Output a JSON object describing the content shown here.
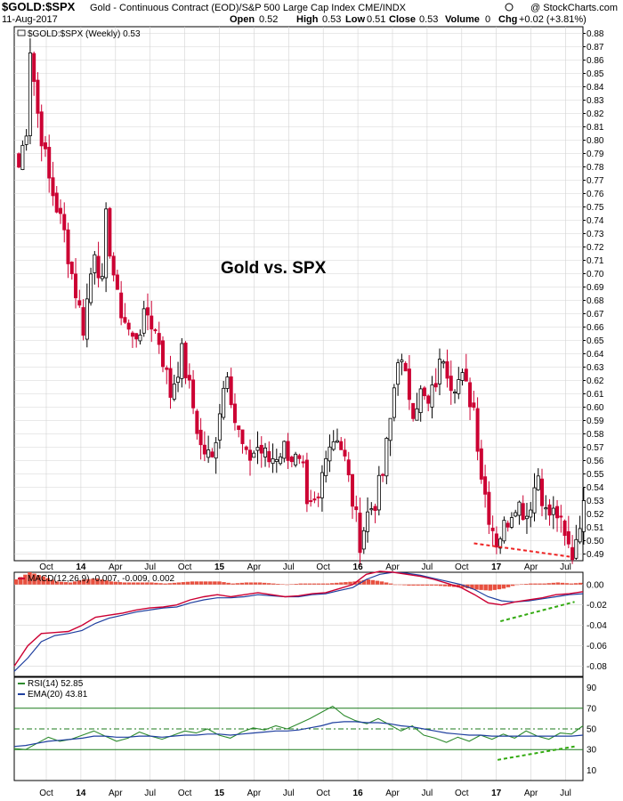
{
  "header": {
    "symbol": "$GOLD:$SPX",
    "description": "Gold - Continuous Contract (EOD)/S&P 500 Large Cap Index  CME/INDX",
    "watermark": "@ StockCharts.com",
    "date": "11-Aug-2017",
    "open_label": "Open",
    "open": "0.52",
    "high_label": "High",
    "high": "0.53",
    "low_label": "Low",
    "low": "0.51",
    "close_label": "Close",
    "close": "0.53",
    "volume_label": "Volume",
    "volume": "0",
    "chg_label": "Chg",
    "chg": "+0.02 (+3.81%)"
  },
  "colors": {
    "up": "#000000",
    "down": "#cc0033",
    "macd_line": "#cc0033",
    "signal_line": "#1f3f9f",
    "histogram": "#e8503f",
    "rsi_line": "#2e8b2e",
    "ema_line": "#1f3f9f",
    "grid": "#d3d3d3",
    "support_up": "#33aa11",
    "support_down": "#ee2222",
    "level_line": "#1a7a1a"
  },
  "chart_data": [
    {
      "type": "candlestick",
      "title": "$GOLD:$SPX (Weekly) 0.53",
      "annotation": "Gold vs. SPX",
      "x_ticks": [
        "Oct",
        "14",
        "Apr",
        "Jul",
        "Oct",
        "15",
        "Apr",
        "Jul",
        "Oct",
        "16",
        "Apr",
        "Jul",
        "Oct",
        "17",
        "Apr",
        "Jul"
      ],
      "y_ticks": [
        "0.88",
        "0.87",
        "0.86",
        "0.85",
        "0.84",
        "0.83",
        "0.82",
        "0.81",
        "0.80",
        "0.79",
        "0.78",
        "0.77",
        "0.76",
        "0.75",
        "0.74",
        "0.73",
        "0.72",
        "0.71",
        "0.70",
        "0.69",
        "0.68",
        "0.67",
        "0.66",
        "0.65",
        "0.64",
        "0.63",
        "0.62",
        "0.61",
        "0.60",
        "0.59",
        "0.58",
        "0.57",
        "0.56",
        "0.55",
        "0.54",
        "0.53",
        "0.52",
        "0.51",
        "0.50",
        "0.49"
      ],
      "ylim": [
        0.485,
        0.885
      ],
      "x_range": [
        "2013-08",
        "2017-08"
      ],
      "close_anchors": [
        [
          0,
          0.78
        ],
        [
          2,
          0.81
        ],
        [
          3,
          0.87
        ],
        [
          5,
          0.82
        ],
        [
          8,
          0.77
        ],
        [
          12,
          0.73
        ],
        [
          14,
          0.7
        ],
        [
          17,
          0.66
        ],
        [
          20,
          0.72
        ],
        [
          22,
          0.69
        ],
        [
          23,
          0.74
        ],
        [
          26,
          0.68
        ],
        [
          30,
          0.65
        ],
        [
          34,
          0.67
        ],
        [
          37,
          0.65
        ],
        [
          40,
          0.61
        ],
        [
          43,
          0.64
        ],
        [
          46,
          0.6
        ],
        [
          48,
          0.57
        ],
        [
          51,
          0.56
        ],
        [
          53,
          0.6
        ],
        [
          55,
          0.63
        ],
        [
          57,
          0.59
        ],
        [
          60,
          0.56
        ],
        [
          63,
          0.57
        ],
        [
          66,
          0.56
        ],
        [
          70,
          0.57
        ],
        [
          73,
          0.56
        ],
        [
          75,
          0.55
        ],
        [
          76,
          0.52
        ],
        [
          79,
          0.53
        ],
        [
          81,
          0.57
        ],
        [
          84,
          0.58
        ],
        [
          86,
          0.56
        ],
        [
          88,
          0.53
        ],
        [
          90,
          0.5
        ],
        [
          92,
          0.52
        ],
        [
          94,
          0.53
        ],
        [
          96,
          0.55
        ],
        [
          98,
          0.59
        ],
        [
          100,
          0.64
        ],
        [
          102,
          0.62
        ],
        [
          104,
          0.6
        ],
        [
          106,
          0.61
        ],
        [
          108,
          0.6
        ],
        [
          110,
          0.62
        ],
        [
          112,
          0.64
        ],
        [
          114,
          0.62
        ],
        [
          117,
          0.62
        ],
        [
          120,
          0.6
        ],
        [
          122,
          0.55
        ],
        [
          124,
          0.52
        ],
        [
          126,
          0.5
        ],
        [
          128,
          0.51
        ],
        [
          131,
          0.53
        ],
        [
          134,
          0.52
        ],
        [
          137,
          0.55
        ],
        [
          139,
          0.52
        ],
        [
          142,
          0.52
        ],
        [
          144,
          0.5
        ],
        [
          146,
          0.49
        ],
        [
          149,
          0.53
        ]
      ],
      "support_line": {
        "from": [
          0.5,
          0.498
        ],
        "to": [
          0.645,
          0.488
        ]
      }
    },
    {
      "type": "line",
      "title": "MACD(12,26,9)",
      "values_text": "-0.007, -0.009, 0.002",
      "series": [
        {
          "name": "MACD",
          "values": [
            -0.08,
            -0.06,
            -0.048,
            -0.047,
            -0.046,
            -0.04,
            -0.032,
            -0.03,
            -0.028,
            -0.025,
            -0.023,
            -0.022,
            -0.02,
            -0.015,
            -0.012,
            -0.01,
            -0.012,
            -0.01,
            -0.008,
            -0.01,
            -0.012,
            -0.011,
            -0.009,
            -0.008,
            -0.004,
            0.0,
            0.01,
            0.013,
            0.012,
            0.01,
            0.008,
            0.005,
            0.001,
            -0.003,
            -0.01,
            -0.018,
            -0.02,
            -0.017,
            -0.015,
            -0.013,
            -0.01,
            -0.009,
            -0.007
          ]
        },
        {
          "name": "Signal",
          "values": [
            -0.085,
            -0.072,
            -0.056,
            -0.05,
            -0.048,
            -0.045,
            -0.038,
            -0.033,
            -0.03,
            -0.027,
            -0.025,
            -0.023,
            -0.022,
            -0.018,
            -0.015,
            -0.013,
            -0.013,
            -0.012,
            -0.01,
            -0.011,
            -0.012,
            -0.012,
            -0.01,
            -0.009,
            -0.006,
            -0.003,
            0.005,
            0.01,
            0.012,
            0.011,
            0.009,
            0.006,
            0.003,
            0.0,
            -0.005,
            -0.012,
            -0.016,
            -0.017,
            -0.016,
            -0.014,
            -0.012,
            -0.01,
            -0.009
          ]
        }
      ],
      "y_ticks": [
        "0.00",
        "-0.02",
        "-0.04",
        "-0.06",
        "-0.08"
      ],
      "ylim": [
        -0.09,
        0.012
      ],
      "support_line": {
        "from": [
          0.545,
          -0.036
        ],
        "to": [
          0.655,
          -0.017
        ]
      }
    },
    {
      "type": "line",
      "title": "RSI(14)",
      "values_text": "52.85",
      "ema_label": "EMA(20)",
      "ema_value_text": "43.81",
      "series": [
        {
          "name": "RSI",
          "values": [
            31,
            30,
            36,
            42,
            38,
            40,
            44,
            48,
            43,
            38,
            41,
            47,
            43,
            40,
            44,
            48,
            46,
            50,
            44,
            41,
            47,
            51,
            49,
            53,
            50,
            55,
            60,
            66,
            72,
            63,
            58,
            55,
            60,
            54,
            48,
            53,
            44,
            41,
            37,
            42,
            38,
            44,
            40,
            45,
            41,
            48,
            43,
            40,
            46,
            45,
            53
          ]
        },
        {
          "name": "EMA",
          "values": [
            33,
            34,
            36,
            38,
            39,
            40,
            41,
            43,
            43,
            42,
            42,
            43,
            43,
            42,
            43,
            44,
            44,
            45,
            45,
            44,
            45,
            46,
            47,
            48,
            48,
            49,
            51,
            53,
            56,
            57,
            57,
            56,
            56,
            55,
            53,
            52,
            50,
            48,
            46,
            45,
            44,
            44,
            43,
            43,
            43,
            43,
            43,
            43,
            43,
            43,
            44
          ]
        }
      ],
      "y_ticks": [
        "90",
        "70",
        "50",
        "30",
        "10"
      ],
      "ylim": [
        0,
        100
      ],
      "levels": [
        70,
        50,
        30
      ],
      "support_line": {
        "from": [
          0.54,
          20
        ],
        "to": [
          0.655,
          33
        ]
      }
    }
  ]
}
